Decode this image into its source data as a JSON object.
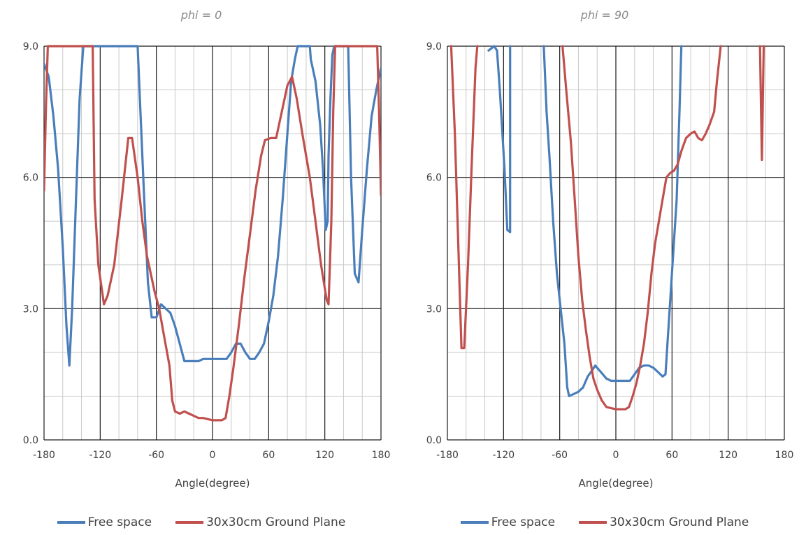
{
  "chart_data": [
    {
      "type": "line",
      "title": "phi = 0",
      "xlabel": "Angle(degree)",
      "ylabel": "",
      "xlim": [
        -180,
        180
      ],
      "ylim": [
        0,
        9
      ],
      "x_ticks": [
        "-180",
        "-120",
        "-60",
        "0",
        "60",
        "120",
        "180"
      ],
      "y_ticks": [
        "0.0",
        "3.0",
        "6.0",
        "9.0"
      ],
      "grid": true,
      "legend_position": "bottom",
      "series": [
        {
          "name": "Free space",
          "color": "#4A7EBB",
          "points": [
            [
              -180,
              8.6
            ],
            [
              -175,
              8.3
            ],
            [
              -170,
              7.4
            ],
            [
              -165,
              6.2
            ],
            [
              -160,
              4.4
            ],
            [
              -156,
              2.6
            ],
            [
              -153,
              1.7
            ],
            [
              -150,
              3.0
            ],
            [
              -146,
              5.4
            ],
            [
              -142,
              7.8
            ],
            [
              -138,
              9.0
            ],
            [
              -80,
              9.0
            ],
            [
              -77,
              7.5
            ],
            [
              -73,
              5.5
            ],
            [
              -69,
              3.6
            ],
            [
              -65,
              2.8
            ],
            [
              -60,
              2.8
            ],
            [
              -55,
              3.1
            ],
            [
              -50,
              3.0
            ],
            [
              -45,
              2.9
            ],
            [
              -40,
              2.6
            ],
            [
              -35,
              2.2
            ],
            [
              -30,
              1.8
            ],
            [
              -25,
              1.8
            ],
            [
              -20,
              1.8
            ],
            [
              -15,
              1.8
            ],
            [
              -10,
              1.85
            ],
            [
              0,
              1.85
            ],
            [
              10,
              1.85
            ],
            [
              15,
              1.85
            ],
            [
              20,
              2.0
            ],
            [
              25,
              2.2
            ],
            [
              30,
              2.2
            ],
            [
              35,
              2.0
            ],
            [
              40,
              1.85
            ],
            [
              45,
              1.85
            ],
            [
              50,
              2.0
            ],
            [
              55,
              2.2
            ],
            [
              60,
              2.7
            ],
            [
              65,
              3.3
            ],
            [
              70,
              4.2
            ],
            [
              75,
              5.5
            ],
            [
              80,
              7.0
            ],
            [
              84,
              8.2
            ],
            [
              88,
              8.7
            ],
            [
              91,
              9.0
            ],
            [
              104,
              9.0
            ],
            [
              105,
              8.7
            ],
            [
              110,
              8.2
            ],
            [
              115,
              7.2
            ],
            [
              118,
              6.2
            ],
            [
              121,
              4.8
            ],
            [
              123,
              5.0
            ],
            [
              124,
              6.5
            ],
            [
              126,
              7.8
            ],
            [
              128,
              8.8
            ],
            [
              130,
              9.0
            ],
            [
              145,
              9.0
            ],
            [
              148,
              6.0
            ],
            [
              152,
              3.8
            ],
            [
              156,
              3.6
            ],
            [
              160,
              4.8
            ],
            [
              165,
              6.2
            ],
            [
              170,
              7.4
            ],
            [
              175,
              8.0
            ],
            [
              180,
              8.5
            ]
          ]
        },
        {
          "name": "30x30cm Ground Plane",
          "color": "#C0504D",
          "points": [
            [
              -180,
              5.7
            ],
            [
              -178,
              7.6
            ],
            [
              -176,
              9.0
            ],
            [
              -128,
              9.0
            ],
            [
              -126,
              5.5
            ],
            [
              -122,
              4.0
            ],
            [
              -116,
              3.1
            ],
            [
              -112,
              3.3
            ],
            [
              -105,
              4.0
            ],
            [
              -97,
              5.5
            ],
            [
              -90,
              6.9
            ],
            [
              -86,
              6.9
            ],
            [
              -80,
              6.0
            ],
            [
              -75,
              5.0
            ],
            [
              -70,
              4.2
            ],
            [
              -62,
              3.4
            ],
            [
              -57,
              3.0
            ],
            [
              -52,
              2.4
            ],
            [
              -46,
              1.7
            ],
            [
              -43,
              0.9
            ],
            [
              -40,
              0.65
            ],
            [
              -35,
              0.6
            ],
            [
              -30,
              0.65
            ],
            [
              -25,
              0.6
            ],
            [
              -20,
              0.55
            ],
            [
              -15,
              0.5
            ],
            [
              -10,
              0.5
            ],
            [
              0,
              0.45
            ],
            [
              10,
              0.45
            ],
            [
              14,
              0.5
            ],
            [
              18,
              1.0
            ],
            [
              22,
              1.6
            ],
            [
              28,
              2.6
            ],
            [
              34,
              3.7
            ],
            [
              40,
              4.7
            ],
            [
              46,
              5.7
            ],
            [
              52,
              6.5
            ],
            [
              56,
              6.85
            ],
            [
              62,
              6.9
            ],
            [
              68,
              6.9
            ],
            [
              74,
              7.5
            ],
            [
              80,
              8.1
            ],
            [
              85,
              8.3
            ],
            [
              90,
              7.8
            ],
            [
              96,
              7.0
            ],
            [
              104,
              6.0
            ],
            [
              110,
              5.0
            ],
            [
              116,
              4.0
            ],
            [
              122,
              3.2
            ],
            [
              124,
              3.1
            ],
            [
              127,
              5.0
            ],
            [
              129,
              7.5
            ],
            [
              131,
              9.0
            ],
            [
              176,
              9.0
            ],
            [
              178,
              7.5
            ],
            [
              180,
              5.6
            ]
          ]
        }
      ]
    },
    {
      "type": "line",
      "title": "phi = 90",
      "xlabel": "Angle(degree)",
      "ylabel": "",
      "xlim": [
        -180,
        180
      ],
      "ylim": [
        0,
        9
      ],
      "x_ticks": [
        "-180",
        "-120",
        "-60",
        "0",
        "60",
        "120",
        "180"
      ],
      "y_ticks": [
        "0.0",
        "3.0",
        "6.0",
        "9.0"
      ],
      "grid": true,
      "legend_position": "bottom",
      "series": [
        {
          "name": "Free space",
          "color": "#4A7EBB",
          "points": [
            [
              -136,
              8.9
            ],
            [
              -130,
              9.0
            ],
            [
              -127,
              8.9
            ],
            [
              -124,
              8.0
            ],
            [
              -119,
              6.2
            ],
            [
              -116,
              4.8
            ],
            [
              -113,
              4.75
            ],
            [
              -113,
              9.0
            ],
            [
              null,
              null
            ],
            [
              -77,
              9.0
            ],
            [
              -74,
              7.5
            ],
            [
              -71,
              6.5
            ],
            [
              -67,
              5.0
            ],
            [
              -63,
              3.8
            ],
            [
              -59,
              3.0
            ],
            [
              -55,
              2.2
            ],
            [
              -52,
              1.2
            ],
            [
              -50,
              1.0
            ],
            [
              -45,
              1.05
            ],
            [
              -40,
              1.1
            ],
            [
              -35,
              1.2
            ],
            [
              -30,
              1.45
            ],
            [
              -25,
              1.6
            ],
            [
              -22,
              1.7
            ],
            [
              -18,
              1.6
            ],
            [
              -14,
              1.5
            ],
            [
              -10,
              1.4
            ],
            [
              -5,
              1.35
            ],
            [
              0,
              1.35
            ],
            [
              5,
              1.35
            ],
            [
              10,
              1.35
            ],
            [
              15,
              1.35
            ],
            [
              20,
              1.5
            ],
            [
              25,
              1.65
            ],
            [
              30,
              1.7
            ],
            [
              35,
              1.7
            ],
            [
              40,
              1.65
            ],
            [
              45,
              1.55
            ],
            [
              50,
              1.45
            ],
            [
              53,
              1.5
            ],
            [
              56,
              2.5
            ],
            [
              59,
              3.5
            ],
            [
              62,
              4.5
            ],
            [
              65,
              5.5
            ],
            [
              68,
              7.5
            ],
            [
              70,
              9.0
            ]
          ]
        },
        {
          "name": "30x30cm Ground Plane",
          "color": "#C0504D",
          "points": [
            [
              -176,
              9.0
            ],
            [
              -172,
              7.0
            ],
            [
              -168,
              4.2
            ],
            [
              -165,
              2.1
            ],
            [
              -162,
              2.1
            ],
            [
              -158,
              4.0
            ],
            [
              -154,
              6.3
            ],
            [
              -150,
              8.5
            ],
            [
              -148,
              9.0
            ],
            [
              null,
              null
            ],
            [
              -57,
              9.0
            ],
            [
              -53,
              8.0
            ],
            [
              -48,
              6.8
            ],
            [
              -44,
              5.5
            ],
            [
              -40,
              4.2
            ],
            [
              -36,
              3.2
            ],
            [
              -32,
              2.5
            ],
            [
              -28,
              1.9
            ],
            [
              -24,
              1.4
            ],
            [
              -20,
              1.15
            ],
            [
              -15,
              0.9
            ],
            [
              -10,
              0.75
            ],
            [
              0,
              0.7
            ],
            [
              10,
              0.7
            ],
            [
              14,
              0.75
            ],
            [
              18,
              1.0
            ],
            [
              22,
              1.3
            ],
            [
              26,
              1.7
            ],
            [
              30,
              2.2
            ],
            [
              34,
              2.9
            ],
            [
              38,
              3.8
            ],
            [
              42,
              4.5
            ],
            [
              46,
              5.0
            ],
            [
              50,
              5.5
            ],
            [
              54,
              6.0
            ],
            [
              58,
              6.1
            ],
            [
              62,
              6.15
            ],
            [
              66,
              6.3
            ],
            [
              70,
              6.6
            ],
            [
              75,
              6.9
            ],
            [
              80,
              7.0
            ],
            [
              84,
              7.05
            ],
            [
              88,
              6.9
            ],
            [
              92,
              6.85
            ],
            [
              96,
              7.0
            ],
            [
              100,
              7.2
            ],
            [
              105,
              7.5
            ],
            [
              108,
              8.2
            ],
            [
              112,
              9.0
            ],
            [
              null,
              null
            ],
            [
              154,
              9.0
            ],
            [
              156,
              6.4
            ],
            [
              158,
              9.0
            ]
          ]
        }
      ]
    }
  ]
}
